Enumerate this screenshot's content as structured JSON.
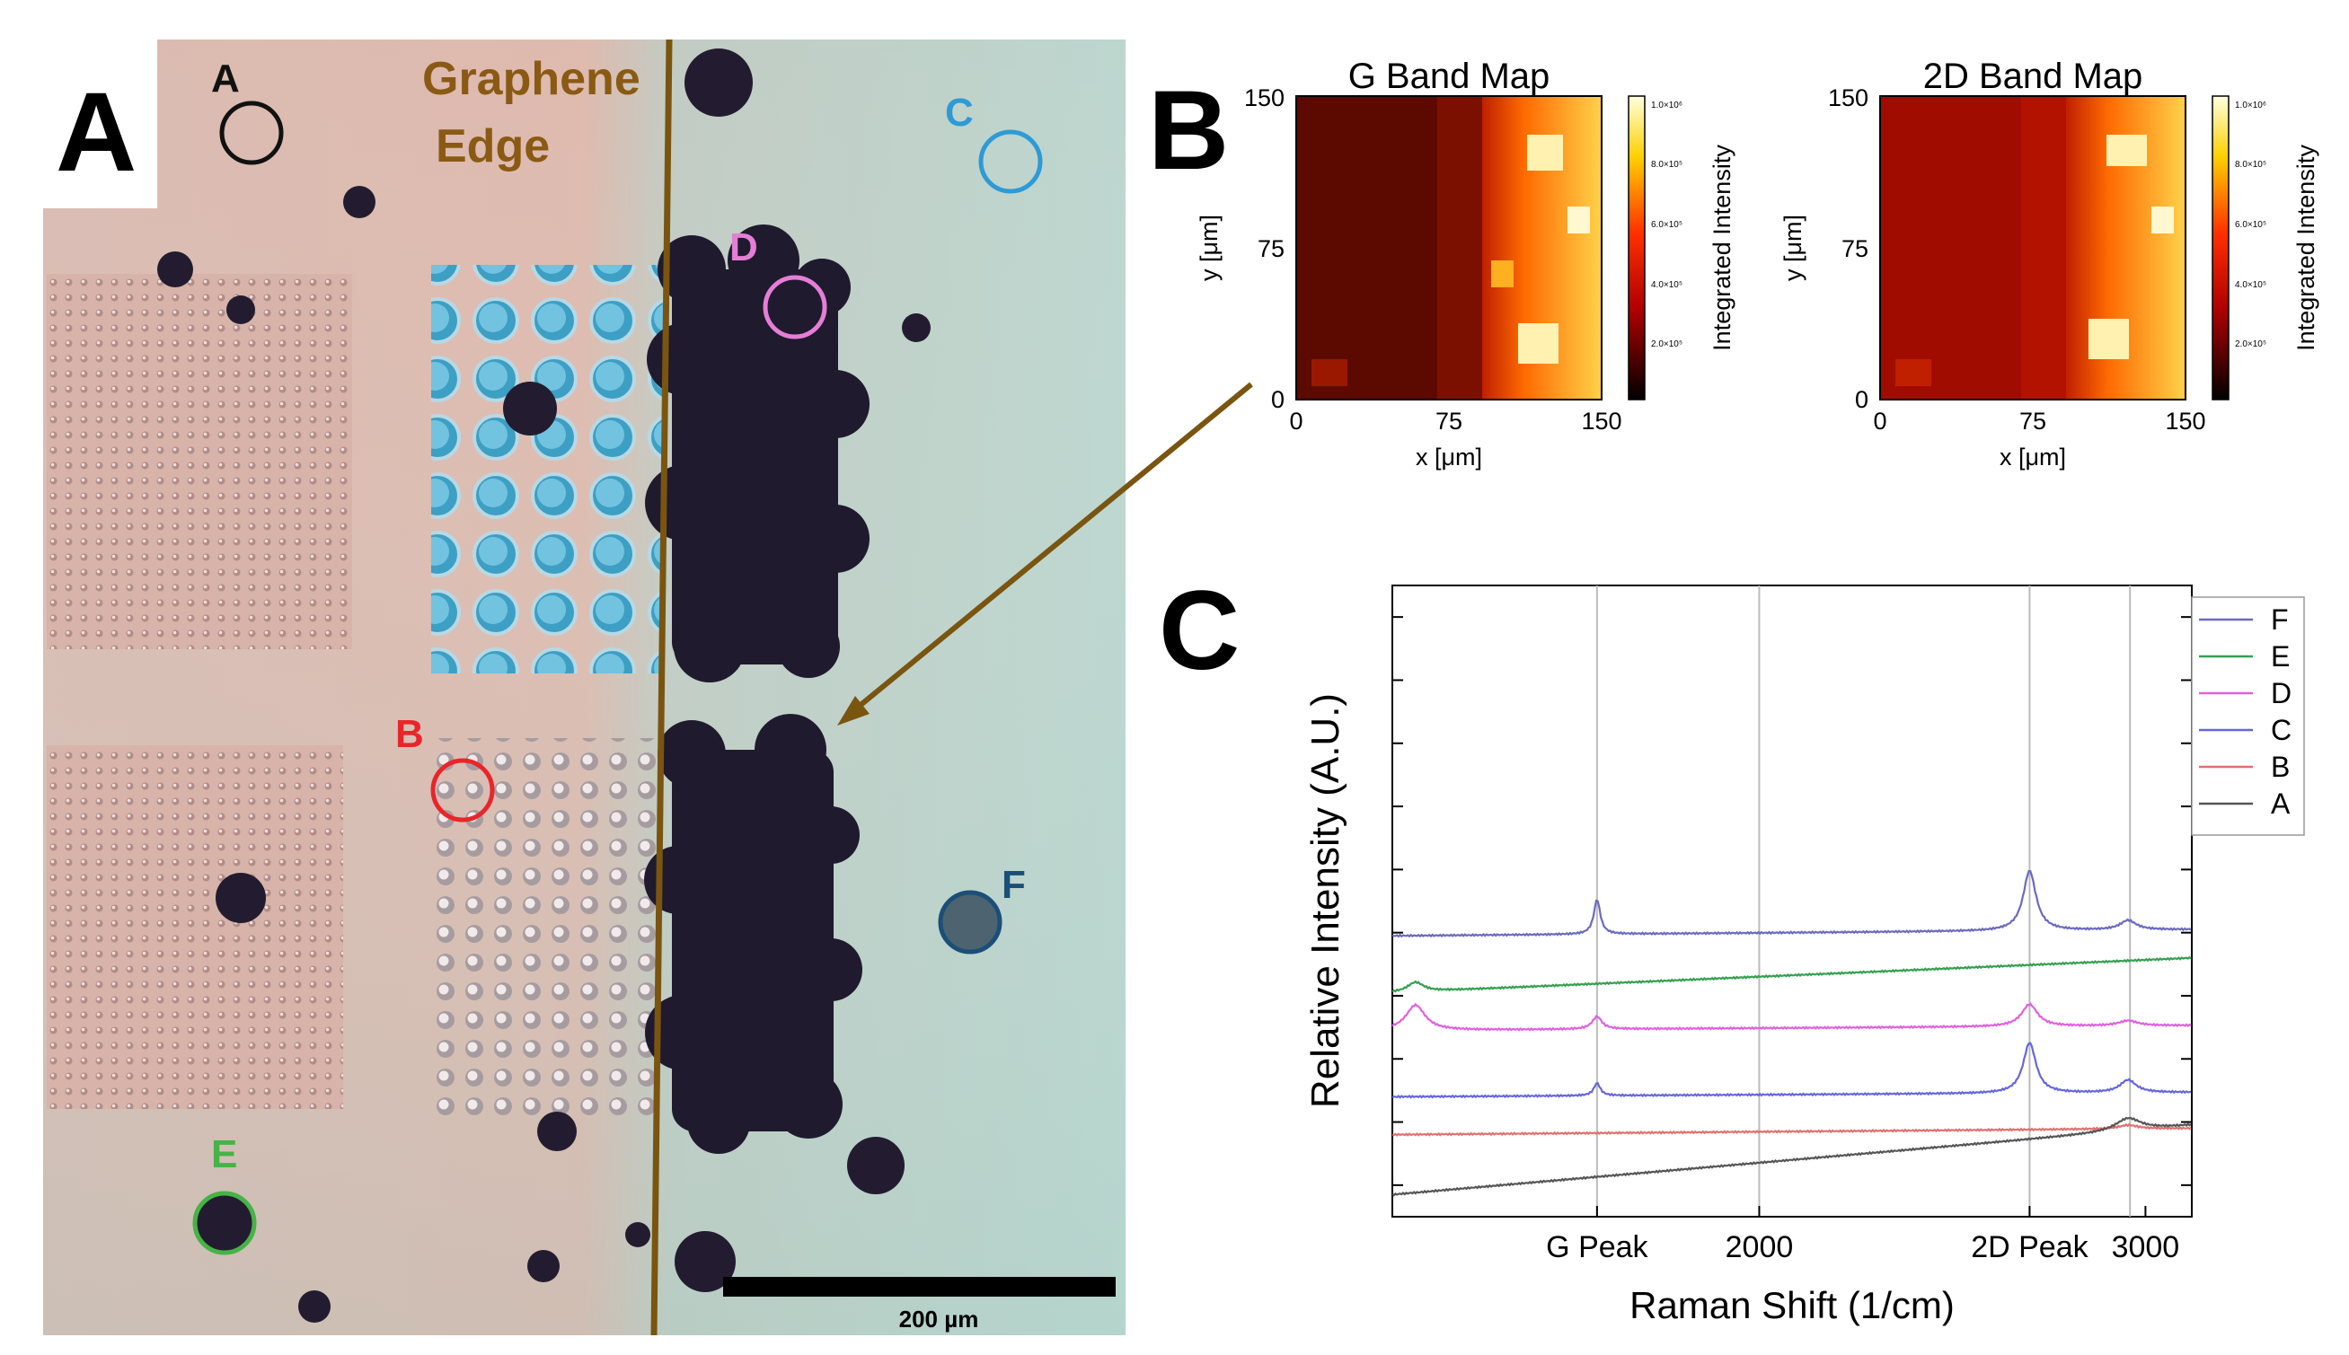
{
  "panelA": {
    "letter": "A",
    "edge_label_line1": "Graphene",
    "edge_label_line2": "Edge",
    "scale_bar": "200 µm",
    "markers": [
      {
        "label": "A",
        "color": "#111111"
      },
      {
        "label": "B",
        "color": "#e8262a"
      },
      {
        "label": "C",
        "color": "#2e9ad6"
      },
      {
        "label": "D",
        "color": "#e57ed6"
      },
      {
        "label": "E",
        "color": "#46b346"
      },
      {
        "label": "F",
        "color": "#1b4f78"
      }
    ]
  },
  "panelB": {
    "letter": "B",
    "colorbar_label": "Integrated Intensity",
    "colorbar_ticks": [
      "1.0×10⁶",
      "8.0×10⁵",
      "6.0×10⁵",
      "4.0×10⁵",
      "2.0×10⁵"
    ],
    "maps": [
      {
        "title": "G Band Map",
        "xlabel": "x [μm]",
        "ylabel": "y [μm]",
        "xticks": [
          "0",
          "75",
          "150"
        ],
        "yticks": [
          "150",
          "75",
          "0"
        ]
      },
      {
        "title": "2D Band Map",
        "xlabel": "x [μm]",
        "ylabel": "y [μm]",
        "xticks": [
          "0",
          "75",
          "150"
        ],
        "yticks": [
          "150",
          "75",
          "0"
        ]
      }
    ]
  },
  "panelC": {
    "letter": "C",
    "chart_data": {
      "type": "line",
      "title": "",
      "xlabel": "Raman Shift (1/cm)",
      "ylabel": "Relative Intensity (A.U.)",
      "xlim": [
        1050,
        3120
      ],
      "ylim": [
        0,
        10
      ],
      "xticks": [
        {
          "value": 1580,
          "label": "G Peak"
        },
        {
          "value": 2000,
          "label": "2000"
        },
        {
          "value": 2700,
          "label": "2D Peak"
        },
        {
          "value": 3000,
          "label": "3000"
        }
      ],
      "vlines": [
        1580,
        2000,
        2700,
        2960
      ],
      "series": [
        {
          "name": "F",
          "color": "#6a6abf",
          "baseline": 4.45,
          "slope": 0.1,
          "peaks": [
            [
              1580,
              0.55,
              10
            ],
            [
              2700,
              0.95,
              20
            ],
            [
              2955,
              0.15,
              25
            ]
          ]
        },
        {
          "name": "E",
          "color": "#33a050",
          "baseline": 3.55,
          "slope": 0.55,
          "peaks": [
            [
              1110,
              0.15,
              25
            ]
          ]
        },
        {
          "name": "D",
          "color": "#e060e0",
          "baseline": 2.95,
          "slope": 0.08,
          "peaks": [
            [
              1110,
              0.4,
              30
            ],
            [
              1580,
              0.2,
              15
            ],
            [
              2700,
              0.35,
              25
            ],
            [
              2955,
              0.08,
              30
            ]
          ]
        },
        {
          "name": "C",
          "color": "#6666dd",
          "baseline": 1.9,
          "slope": 0.07,
          "peaks": [
            [
              1580,
              0.2,
              10
            ],
            [
              2700,
              0.8,
              20
            ],
            [
              2955,
              0.2,
              25
            ]
          ]
        },
        {
          "name": "B",
          "color": "#e07070",
          "baseline": 1.3,
          "slope": 0.1,
          "peaks": [
            [
              2955,
              0.06,
              30
            ]
          ]
        },
        {
          "name": "A",
          "color": "#555555",
          "baseline": 0.35,
          "slope": 1.1,
          "peaks": [
            [
              2955,
              0.2,
              40
            ]
          ]
        }
      ]
    }
  }
}
